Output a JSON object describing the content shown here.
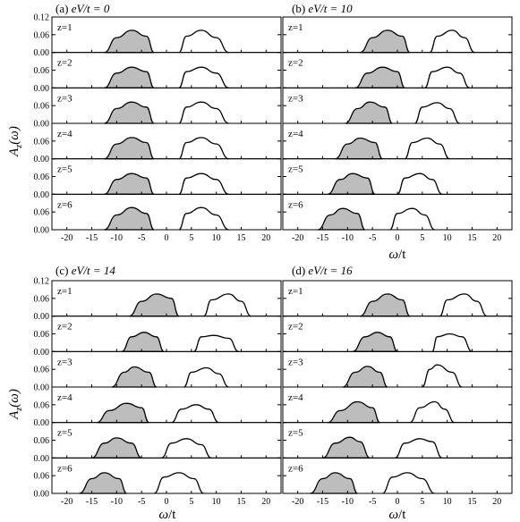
{
  "figure": {
    "ylabel_main": "A",
    "ylabel_sub": "z",
    "ylabel_arg": "(ω)",
    "xlabel_main": "ω",
    "xlabel_unit": "/t",
    "panels": [
      {
        "prefix": "(a) ",
        "var": "eV",
        "rest": "/t = 0"
      },
      {
        "prefix": "(b) ",
        "var": "eV",
        "rest": "/t = 10"
      },
      {
        "prefix": "(c) ",
        "var": "eV",
        "rest": "/t = 14"
      },
      {
        "prefix": "(d) ",
        "var": "eV",
        "rest": "/t = 16"
      }
    ]
  },
  "chart_data": {
    "type": "area",
    "description_free": true,
    "xlim": [
      -23,
      23
    ],
    "ylim": [
      0,
      0.12
    ],
    "xticks": [
      -20,
      -15,
      -10,
      -5,
      0,
      5,
      10,
      15,
      20
    ],
    "yticks": [
      "0.00",
      "0.06",
      "0.12"
    ],
    "subplot_labels": [
      "z=1",
      "z=2",
      "z=3",
      "z=4",
      "z=5",
      "z=6"
    ],
    "panels": [
      {
        "eV_over_t": 0,
        "rows": [
          {
            "z": 1,
            "lower_band": {
              "x": [
                -12.5,
                -10,
                -7,
                -4,
                -2.5
              ],
              "y": [
                0,
                0.05,
                0.075,
                0.055,
                0
              ]
            },
            "upper_band": {
              "x": [
                2.5,
                4,
                7,
                10,
                12.5
              ],
              "y": [
                0,
                0.055,
                0.075,
                0.05,
                0
              ]
            }
          },
          {
            "z": 2,
            "lower_band": {
              "x": [
                -12.5,
                -10,
                -7,
                -4,
                -2.5
              ],
              "y": [
                0,
                0.05,
                0.07,
                0.055,
                0
              ]
            },
            "upper_band": {
              "x": [
                2.5,
                4,
                7,
                10,
                12.5
              ],
              "y": [
                0,
                0.055,
                0.07,
                0.05,
                0
              ]
            }
          },
          {
            "z": 3,
            "lower_band": {
              "x": [
                -12.5,
                -10,
                -7,
                -4,
                -2.5
              ],
              "y": [
                0,
                0.05,
                0.072,
                0.055,
                0
              ]
            },
            "upper_band": {
              "x": [
                2.5,
                4,
                7,
                10,
                12.5
              ],
              "y": [
                0,
                0.055,
                0.072,
                0.05,
                0
              ]
            }
          },
          {
            "z": 4,
            "lower_band": {
              "x": [
                -12.5,
                -10,
                -7,
                -4,
                -2.5
              ],
              "y": [
                0,
                0.05,
                0.072,
                0.055,
                0
              ]
            },
            "upper_band": {
              "x": [
                2.5,
                4,
                7,
                10,
                12.5
              ],
              "y": [
                0,
                0.055,
                0.072,
                0.05,
                0
              ]
            }
          },
          {
            "z": 5,
            "lower_band": {
              "x": [
                -12.5,
                -10,
                -7,
                -4,
                -2.5
              ],
              "y": [
                0,
                0.05,
                0.07,
                0.055,
                0
              ]
            },
            "upper_band": {
              "x": [
                2.5,
                4,
                7,
                10,
                12.5
              ],
              "y": [
                0,
                0.055,
                0.07,
                0.05,
                0
              ]
            }
          },
          {
            "z": 6,
            "lower_band": {
              "x": [
                -12.5,
                -10,
                -7,
                -4,
                -2.5
              ],
              "y": [
                0,
                0.05,
                0.075,
                0.055,
                0
              ]
            },
            "upper_band": {
              "x": [
                2.5,
                4,
                7,
                10,
                12.5
              ],
              "y": [
                0,
                0.055,
                0.075,
                0.05,
                0
              ]
            }
          }
        ]
      },
      {
        "eV_over_t": 10,
        "rows": [
          {
            "z": 1,
            "lower_band": {
              "x": [
                -7.5,
                -5,
                -2,
                1,
                2.5
              ],
              "y": [
                0,
                0.05,
                0.075,
                0.055,
                0
              ]
            },
            "upper_band": {
              "x": [
                6.5,
                8,
                11,
                13.5,
                15.5
              ],
              "y": [
                0,
                0.055,
                0.075,
                0.05,
                0
              ]
            }
          },
          {
            "z": 2,
            "lower_band": {
              "x": [
                -8.5,
                -6,
                -3,
                0,
                1.5
              ],
              "y": [
                0,
                0.05,
                0.07,
                0.055,
                0
              ]
            },
            "upper_band": {
              "x": [
                5.5,
                7,
                10,
                12.5,
                14.5
              ],
              "y": [
                0,
                0.055,
                0.07,
                0.05,
                0
              ]
            }
          },
          {
            "z": 3,
            "lower_band": {
              "x": [
                -10.5,
                -8,
                -5.5,
                -2.5,
                -1
              ],
              "y": [
                0,
                0.05,
                0.072,
                0.055,
                0
              ]
            },
            "upper_band": {
              "x": [
                3.5,
                5,
                8,
                10.5,
                12.5
              ],
              "y": [
                0,
                0.055,
                0.07,
                0.05,
                0
              ]
            }
          },
          {
            "z": 4,
            "lower_band": {
              "x": [
                -12.5,
                -10,
                -7.5,
                -4.5,
                -3
              ],
              "y": [
                0,
                0.05,
                0.07,
                0.055,
                0
              ]
            },
            "upper_band": {
              "x": [
                1.5,
                3,
                6,
                8.5,
                10.5
              ],
              "y": [
                0,
                0.055,
                0.07,
                0.05,
                0
              ]
            }
          },
          {
            "z": 5,
            "lower_band": {
              "x": [
                -14,
                -11.5,
                -9,
                -6,
                -4.5
              ],
              "y": [
                0,
                0.05,
                0.07,
                0.055,
                0
              ]
            },
            "upper_band": {
              "x": [
                0,
                1.5,
                4.5,
                7,
                9
              ],
              "y": [
                0,
                0.055,
                0.07,
                0.05,
                0
              ]
            }
          },
          {
            "z": 6,
            "lower_band": {
              "x": [
                -16,
                -13.5,
                -11,
                -8,
                -6.5
              ],
              "y": [
                0,
                0.05,
                0.072,
                0.055,
                0
              ]
            },
            "upper_band": {
              "x": [
                -1.5,
                0,
                3,
                5.5,
                7.5
              ],
              "y": [
                0,
                0.055,
                0.072,
                0.05,
                0
              ]
            }
          }
        ]
      },
      {
        "eV_over_t": 14,
        "rows": [
          {
            "z": 1,
            "lower_band": {
              "x": [
                -7.5,
                -5,
                -2,
                1,
                2.5
              ],
              "y": [
                0,
                0.05,
                0.075,
                0.06,
                0
              ]
            },
            "upper_band": {
              "x": [
                7.5,
                9,
                12.5,
                15,
                17
              ],
              "y": [
                0,
                0.055,
                0.075,
                0.05,
                0
              ]
            }
          },
          {
            "z": 2,
            "lower_band": {
              "x": [
                -9,
                -7,
                -4.5,
                -2,
                -0.5
              ],
              "y": [
                0,
                0.05,
                0.065,
                0.05,
                0
              ]
            },
            "upper_band": {
              "x": [
                5.5,
                7,
                9.5,
                12.5,
                14.5
              ],
              "y": [
                0,
                0.05,
                0.055,
                0.045,
                0
              ]
            }
          },
          {
            "z": 3,
            "lower_band": {
              "x": [
                -11,
                -8.5,
                -6.5,
                -3.5,
                -2
              ],
              "y": [
                0,
                0.05,
                0.068,
                0.05,
                0
              ]
            },
            "upper_band": {
              "x": [
                3.5,
                5,
                8,
                10.5,
                12.5
              ],
              "y": [
                0,
                0.05,
                0.065,
                0.045,
                0
              ]
            }
          },
          {
            "z": 4,
            "lower_band": {
              "x": [
                -14,
                -11.5,
                -8,
                -5,
                -3.5
              ],
              "y": [
                0,
                0.04,
                0.065,
                0.05,
                0
              ]
            },
            "upper_band": {
              "x": [
                1,
                3,
                6,
                8.5,
                10.5
              ],
              "y": [
                0,
                0.045,
                0.06,
                0.045,
                0
              ]
            }
          },
          {
            "z": 5,
            "lower_band": {
              "x": [
                -15,
                -12.5,
                -10,
                -7,
                -5
              ],
              "y": [
                0,
                0.05,
                0.068,
                0.05,
                0
              ]
            },
            "upper_band": {
              "x": [
                -1,
                1,
                4,
                7,
                9
              ],
              "y": [
                0,
                0.05,
                0.065,
                0.045,
                0
              ]
            }
          },
          {
            "z": 6,
            "lower_band": {
              "x": [
                -17.5,
                -15,
                -12.5,
                -9.5,
                -8
              ],
              "y": [
                0,
                0.05,
                0.07,
                0.05,
                0
              ]
            },
            "upper_band": {
              "x": [
                -2.5,
                -0.5,
                2.5,
                5.5,
                7.5
              ],
              "y": [
                0,
                0.055,
                0.07,
                0.05,
                0
              ]
            }
          }
        ]
      },
      {
        "eV_over_t": 16,
        "rows": [
          {
            "z": 1,
            "lower_band": {
              "x": [
                -7.5,
                -5,
                -2,
                1,
                2.5
              ],
              "y": [
                0,
                0.05,
                0.075,
                0.055,
                0
              ]
            },
            "upper_band": {
              "x": [
                8.5,
                10,
                13.5,
                16,
                18
              ],
              "y": [
                0,
                0.055,
                0.075,
                0.05,
                0
              ]
            }
          },
          {
            "z": 2,
            "lower_band": {
              "x": [
                -9,
                -6.5,
                -4,
                -1.5,
                0
              ],
              "y": [
                0,
                0.05,
                0.065,
                0.05,
                0
              ]
            },
            "upper_band": {
              "x": [
                7,
                8,
                10.5,
                13,
                15
              ],
              "y": [
                0,
                0.05,
                0.06,
                0.05,
                0
              ]
            }
          },
          {
            "z": 3,
            "lower_band": {
              "x": [
                -11,
                -8.5,
                -6,
                -3.5,
                -2
              ],
              "y": [
                0,
                0.05,
                0.07,
                0.05,
                0
              ]
            },
            "upper_band": {
              "x": [
                5,
                6.5,
                8,
                11,
                13
              ],
              "y": [
                0,
                0.06,
                0.075,
                0.05,
                0
              ]
            }
          },
          {
            "z": 4,
            "lower_band": {
              "x": [
                -14,
                -11.5,
                -8,
                -5,
                -3.5
              ],
              "y": [
                0,
                0.04,
                0.07,
                0.05,
                0
              ]
            },
            "upper_band": {
              "x": [
                2.5,
                4.5,
                7.5,
                9.5,
                11.5
              ],
              "y": [
                0,
                0.05,
                0.07,
                0.045,
                0
              ]
            }
          },
          {
            "z": 5,
            "lower_band": {
              "x": [
                -15,
                -12.5,
                -9.5,
                -7.5,
                -5.5
              ],
              "y": [
                0,
                0.05,
                0.07,
                0.055,
                0
              ]
            },
            "upper_band": {
              "x": [
                -0.5,
                1.5,
                4.5,
                7,
                9
              ],
              "y": [
                0,
                0.05,
                0.065,
                0.055,
                0
              ]
            }
          },
          {
            "z": 6,
            "lower_band": {
              "x": [
                -17.5,
                -15,
                -12.5,
                -9.5,
                -8
              ],
              "y": [
                0,
                0.05,
                0.07,
                0.05,
                0
              ]
            },
            "upper_band": {
              "x": [
                -3,
                -1,
                2,
                5,
                7.5
              ],
              "y": [
                0,
                0.055,
                0.07,
                0.05,
                0
              ]
            }
          }
        ]
      }
    ]
  }
}
